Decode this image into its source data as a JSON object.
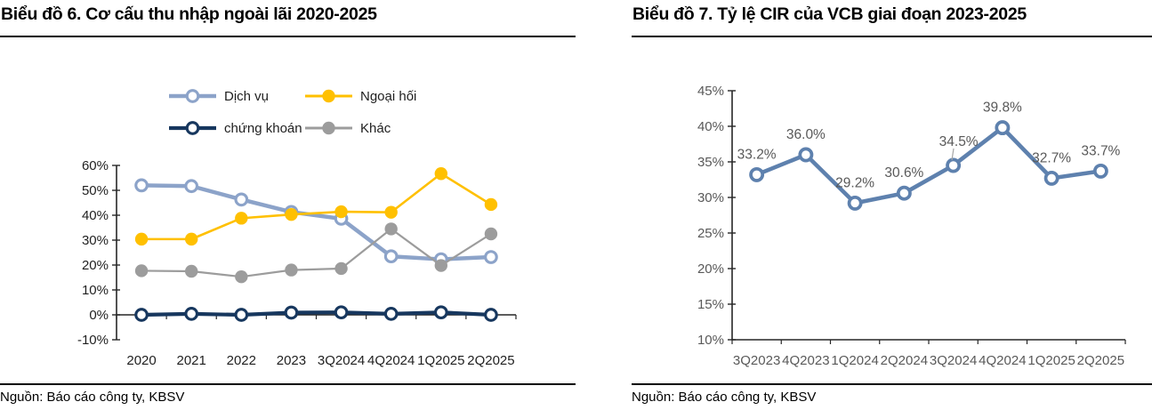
{
  "page": {
    "background": "#ffffff"
  },
  "left_panel": {
    "title": "Biểu đồ 6. Cơ cấu thu nhập ngoài lãi 2020-2025",
    "source": "Nguồn: Báo cáo công ty, KBSV"
  },
  "right_panel": {
    "title": "Biểu đồ 7. Tỷ lệ CIR của VCB giai đoạn 2023-2025",
    "source": "Nguồn: Báo cáo công ty, KBSV"
  },
  "colors": {
    "service_blue": "#8CA3C9",
    "fx_yellow": "#FFC000",
    "securities_navy": "#17375E",
    "other_grey": "#9C9C9C",
    "cir_blue": "#5E81AE",
    "axis": "#262626",
    "label_grey": "#595959"
  },
  "chart_data": [
    {
      "id": "non_interest_income_structure",
      "type": "line",
      "title": "Biểu đồ 6. Cơ cấu thu nhập ngoài lãi 2020-2025",
      "categories": [
        "2020",
        "2021",
        "2022",
        "2023",
        "3Q2024",
        "4Q2024",
        "1Q2025",
        "2Q2025"
      ],
      "series": [
        {
          "name": "Dịch vụ",
          "color": "#8CA3C9",
          "marker": "open",
          "line_width": 4.5,
          "values": [
            52.0,
            51.7,
            46.3,
            41.3,
            38.6,
            23.5,
            22.3,
            23.2
          ]
        },
        {
          "name": "Ngoại hối",
          "color": "#FFC000",
          "marker": "filled",
          "line_width": 2.6,
          "values": [
            30.4,
            30.4,
            38.8,
            40.3,
            41.4,
            41.2,
            56.7,
            44.3
          ]
        },
        {
          "name": "chứng khoán",
          "color": "#17375E",
          "marker": "open",
          "line_width": 4.2,
          "values": [
            0.0,
            0.4,
            0.0,
            0.9,
            1.0,
            0.4,
            1.0,
            0.0
          ]
        },
        {
          "name": "Khác",
          "color": "#9C9C9C",
          "marker": "filled",
          "line_width": 2.2,
          "values": [
            17.7,
            17.5,
            15.3,
            18.0,
            18.6,
            34.5,
            19.8,
            32.5
          ]
        }
      ],
      "ylim": [
        -10,
        60
      ],
      "ytick_step": 10,
      "ytick_labels": [
        "-10%",
        "0%",
        "10%",
        "20%",
        "30%",
        "40%",
        "50%",
        "60%"
      ],
      "legend_position": "top",
      "grid": false
    },
    {
      "id": "vcb_cir_ratio",
      "type": "line",
      "title": "Biểu đồ 7. Tỷ lệ CIR của VCB giai đoạn 2023-2025",
      "categories": [
        "3Q2023",
        "4Q2023",
        "1Q2024",
        "2Q2024",
        "3Q2024",
        "4Q2024",
        "1Q2025",
        "2Q2025"
      ],
      "series": [
        {
          "name": "CIR",
          "color": "#5E81AE",
          "marker": "open",
          "line_width": 4.6,
          "values": [
            33.2,
            36.0,
            29.2,
            30.6,
            34.5,
            39.8,
            32.7,
            33.7
          ]
        }
      ],
      "data_labels": [
        "33.2%",
        "36.0%",
        "29.2%",
        "30.6%",
        "34.5%",
        "39.8%",
        "32.7%",
        "33.7%"
      ],
      "ylim": [
        10,
        45
      ],
      "ytick_step": 5,
      "ytick_labels": [
        "10%",
        "15%",
        "20%",
        "25%",
        "30%",
        "35%",
        "40%",
        "45%"
      ],
      "legend_position": "none",
      "grid": false
    }
  ]
}
